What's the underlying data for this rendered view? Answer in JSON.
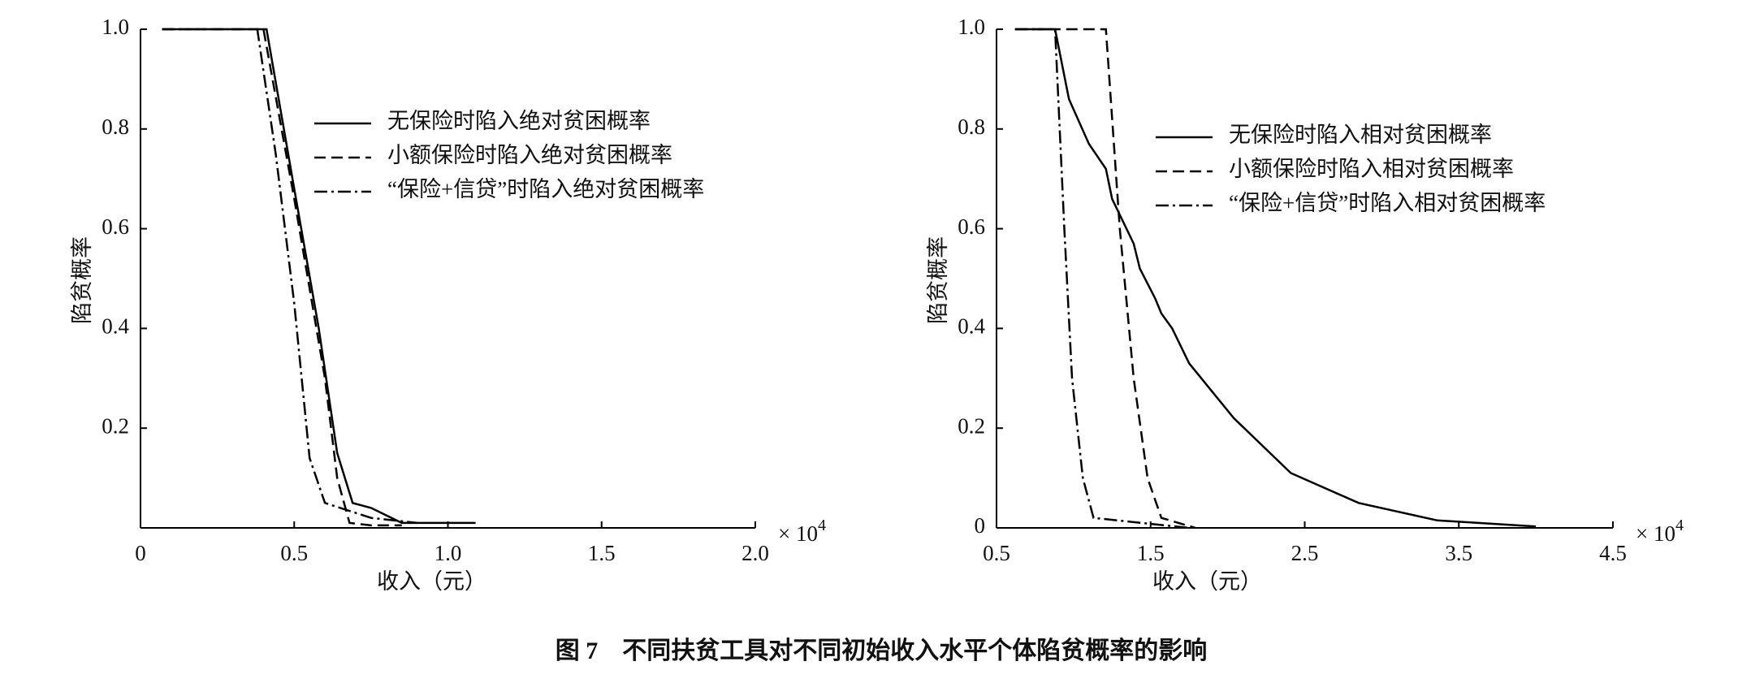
{
  "caption": "图 7　不同扶贫工具对不同初始收入水平个体陷贫概率的影响",
  "chart_data": [
    {
      "type": "line",
      "xlabel": "收入（元）",
      "ylabel": "陷贫概率",
      "x_multiplier": "× 10",
      "x_multiplier_exponent": "4",
      "xlim": [
        0,
        2
      ],
      "xticks": [
        0,
        0.5,
        {
          "value": 1,
          "label": "1.0"
        },
        1.5,
        {
          "value": 2,
          "label": "2.0"
        }
      ],
      "ylim": [
        0,
        1
      ],
      "yticks": [
        0.2,
        0.4,
        0.6,
        0.8,
        {
          "value": 1,
          "label": "1.0"
        }
      ],
      "legend": "upper right",
      "series": [
        {
          "name": "无保险时陷入绝对贫困概率",
          "color": "#000000",
          "dash": "solid",
          "x": [
            0.07,
            0.41,
            0.5,
            0.58,
            0.64,
            0.69,
            0.75,
            0.85,
            1.09
          ],
          "values": [
            1,
            1,
            0.68,
            0.4,
            0.15,
            0.05,
            0.04,
            0.01,
            0.01
          ]
        },
        {
          "name": "小额保险时陷入绝对贫困概率",
          "color": "#000000",
          "dash": "dashed",
          "x": [
            0.07,
            0.4,
            0.5,
            0.6,
            0.64,
            0.68,
            0.75,
            0.85
          ],
          "values": [
            1,
            1,
            0.66,
            0.3,
            0.1,
            0.01,
            0.005,
            0.005
          ]
        },
        {
          "name": "“保险+信贷”时陷入绝对贫困概率",
          "color": "#000000",
          "dash": "dashdot",
          "x": [
            0.07,
            0.38,
            0.44,
            0.5,
            0.55,
            0.6,
            0.65,
            0.75,
            0.9
          ],
          "values": [
            1,
            1,
            0.75,
            0.45,
            0.14,
            0.05,
            0.04,
            0.02,
            0.01
          ]
        }
      ]
    },
    {
      "type": "line",
      "xlabel": "收入（元）",
      "ylabel": "陷贫概率",
      "x_multiplier": "× 10",
      "x_multiplier_exponent": "4",
      "xlim": [
        0.5,
        4.5
      ],
      "xticks": [
        0.5,
        1.5,
        2.5,
        3.5,
        4.5
      ],
      "ylim": [
        0,
        1
      ],
      "yticks": [
        0,
        0.2,
        0.4,
        0.6,
        0.8,
        {
          "value": 1,
          "label": "1.0"
        }
      ],
      "legend": "upper right",
      "series": [
        {
          "name": "无保险时陷入相对贫困概率",
          "color": "#000000",
          "dash": "solid",
          "x": [
            0.62,
            0.88,
            0.97,
            1.1,
            1.21,
            1.25,
            1.39,
            1.43,
            1.53,
            1.57,
            1.64,
            1.75,
            2.04,
            2.41,
            2.85,
            3.36,
            4.0
          ],
          "values": [
            1,
            1,
            0.86,
            0.77,
            0.72,
            0.66,
            0.57,
            0.52,
            0.46,
            0.43,
            0.4,
            0.33,
            0.22,
            0.11,
            0.05,
            0.015,
            0.003
          ]
        },
        {
          "name": "小额保险时陷入相对贫困概率",
          "color": "#000000",
          "dash": "dashed",
          "x": [
            0.62,
            1.21,
            1.3,
            1.39,
            1.48,
            1.57,
            1.79
          ],
          "values": [
            1,
            1,
            0.6,
            0.3,
            0.1,
            0.02,
            0
          ]
        },
        {
          "name": "“保险+信贷”时陷入相对贫困概率",
          "color": "#000000",
          "dash": "dashdot",
          "x": [
            0.62,
            0.88,
            0.94,
            0.99,
            1.06,
            1.13,
            1.75
          ],
          "values": [
            1,
            1,
            0.6,
            0.3,
            0.1,
            0.02,
            0
          ]
        }
      ]
    }
  ]
}
